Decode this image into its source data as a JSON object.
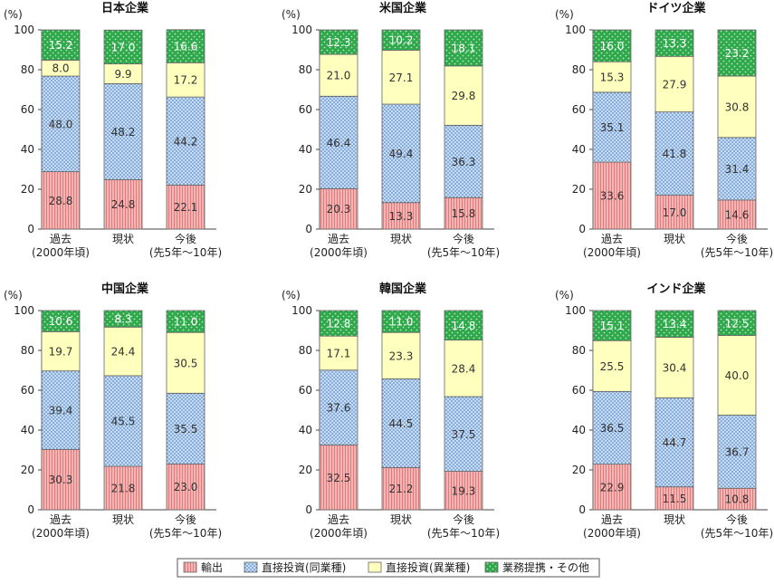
{
  "y_unit": "(%)",
  "y_ticks": [
    0,
    20,
    40,
    60,
    80,
    100
  ],
  "colors": {
    "export": "#f5b5b5",
    "export_line": "#e07a7a",
    "fdi_same": "#c8dcf2",
    "fdi_same_dot": "#3a73c0",
    "fdi_diff": "#ffffbe",
    "partner": "#2ea84a",
    "partner_dot": "#b8e6c0",
    "border": "#666666"
  },
  "chart_data": [
    {
      "type": "bar",
      "stacked": true,
      "title": "日本企業",
      "categories": [
        "過去\n(2000年頃)",
        "現状",
        "今後\n(先5年〜10年)"
      ],
      "ylim": [
        0,
        100
      ],
      "series": [
        {
          "name": "輸出",
          "values": [
            28.8,
            24.8,
            22.1
          ]
        },
        {
          "name": "直接投資(同業種)",
          "values": [
            48.0,
            48.2,
            44.2
          ]
        },
        {
          "name": "直接投資(異業種)",
          "values": [
            8.0,
            9.9,
            17.2
          ]
        },
        {
          "name": "業務提携・その他",
          "values": [
            15.2,
            17.0,
            16.6
          ]
        }
      ]
    },
    {
      "type": "bar",
      "stacked": true,
      "title": "米国企業",
      "categories": [
        "過去\n(2000年頃)",
        "現状",
        "今後\n(先5年〜10年)"
      ],
      "ylim": [
        0,
        100
      ],
      "series": [
        {
          "name": "輸出",
          "values": [
            20.3,
            13.3,
            15.8
          ]
        },
        {
          "name": "直接投資(同業種)",
          "values": [
            46.4,
            49.4,
            36.3
          ]
        },
        {
          "name": "直接投資(異業種)",
          "values": [
            21.0,
            27.1,
            29.8
          ]
        },
        {
          "name": "業務提携・その他",
          "values": [
            12.3,
            10.2,
            18.1
          ]
        }
      ]
    },
    {
      "type": "bar",
      "stacked": true,
      "title": "ドイツ企業",
      "categories": [
        "過去\n(2000年頃)",
        "現状",
        "今後\n(先5年〜10年)"
      ],
      "ylim": [
        0,
        100
      ],
      "series": [
        {
          "name": "輸出",
          "values": [
            33.6,
            17.0,
            14.6
          ]
        },
        {
          "name": "直接投資(同業種)",
          "values": [
            35.1,
            41.8,
            31.4
          ]
        },
        {
          "name": "直接投資(異業種)",
          "values": [
            15.3,
            27.9,
            30.8
          ]
        },
        {
          "name": "業務提携・その他",
          "values": [
            16.0,
            13.3,
            23.2
          ]
        }
      ]
    },
    {
      "type": "bar",
      "stacked": true,
      "title": "中国企業",
      "categories": [
        "過去\n(2000年頃)",
        "現状",
        "今後\n(先5年〜10年)"
      ],
      "ylim": [
        0,
        100
      ],
      "series": [
        {
          "name": "輸出",
          "values": [
            30.3,
            21.8,
            23.0
          ]
        },
        {
          "name": "直接投資(同業種)",
          "values": [
            39.4,
            45.5,
            35.5
          ]
        },
        {
          "name": "直接投資(異業種)",
          "values": [
            19.7,
            24.4,
            30.5
          ]
        },
        {
          "name": "業務提携・その他",
          "values": [
            10.6,
            8.3,
            11.0
          ]
        }
      ]
    },
    {
      "type": "bar",
      "stacked": true,
      "title": "韓国企業",
      "categories": [
        "過去\n(2000年頃)",
        "現状",
        "今後\n(先5年〜10年)"
      ],
      "ylim": [
        0,
        100
      ],
      "series": [
        {
          "name": "輸出",
          "values": [
            32.5,
            21.2,
            19.3
          ]
        },
        {
          "name": "直接投資(同業種)",
          "values": [
            37.6,
            44.5,
            37.5
          ]
        },
        {
          "name": "直接投資(異業種)",
          "values": [
            17.1,
            23.3,
            28.4
          ]
        },
        {
          "name": "業務提携・その他",
          "values": [
            12.8,
            11.0,
            14.8
          ]
        }
      ]
    },
    {
      "type": "bar",
      "stacked": true,
      "title": "インド企業",
      "categories": [
        "過去\n(2000年頃)",
        "現状",
        "今後\n(先5年〜10年)"
      ],
      "ylim": [
        0,
        100
      ],
      "series": [
        {
          "name": "輸出",
          "values": [
            22.9,
            11.5,
            10.8
          ]
        },
        {
          "name": "直接投資(同業種)",
          "values": [
            36.5,
            44.7,
            36.7
          ]
        },
        {
          "name": "直接投資(異業種)",
          "values": [
            25.5,
            30.4,
            40.0
          ]
        },
        {
          "name": "業務提携・その他",
          "values": [
            15.1,
            13.4,
            12.5
          ]
        }
      ]
    }
  ],
  "legend": [
    {
      "key": "export",
      "label": "輸出"
    },
    {
      "key": "fdi_same",
      "label": "直接投資(同業種)"
    },
    {
      "key": "fdi_diff",
      "label": "直接投資(異業種)"
    },
    {
      "key": "partner",
      "label": "業務提携・その他"
    }
  ]
}
